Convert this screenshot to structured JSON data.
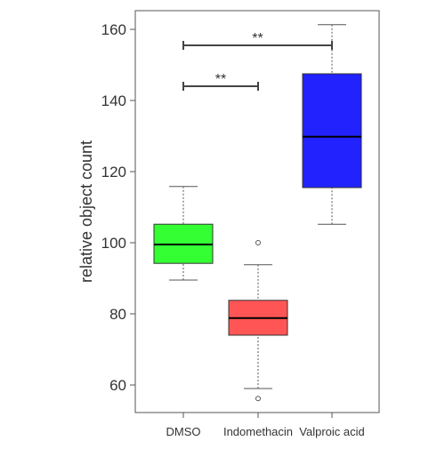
{
  "chart_data": {
    "type": "boxplot",
    "ylabel": "relative object count",
    "xlabel": "",
    "ylim": [
      54,
      165
    ],
    "yticks": [
      60,
      80,
      100,
      120,
      140,
      160
    ],
    "categories": [
      "DMSO",
      "Indomethacin",
      "Valproic acid"
    ],
    "boxes": [
      {
        "name": "DMSO",
        "color": "#33ff33",
        "whisker_low": 89.5,
        "q1": 94.2,
        "median": 99.5,
        "q3": 105.2,
        "whisker_high": 115.8,
        "outliers": []
      },
      {
        "name": "Indomethacin",
        "color": "#ff5555",
        "whisker_low": 59,
        "q1": 74,
        "median": 78.8,
        "q3": 83.8,
        "whisker_high": 93.8,
        "outliers": [
          56.2,
          100
        ]
      },
      {
        "name": "Valproic acid",
        "color": "#2222ff",
        "whisker_low": 105.2,
        "q1": 115.5,
        "median": 129.8,
        "q3": 147.5,
        "whisker_high": 161.3,
        "outliers": []
      }
    ],
    "significance": [
      {
        "from": "DMSO",
        "to": "Indomethacin",
        "y": 144,
        "label": "**"
      },
      {
        "from": "DMSO",
        "to": "Valproic acid",
        "y": 155.5,
        "label": "**"
      }
    ],
    "grid": false,
    "legend": "none"
  }
}
